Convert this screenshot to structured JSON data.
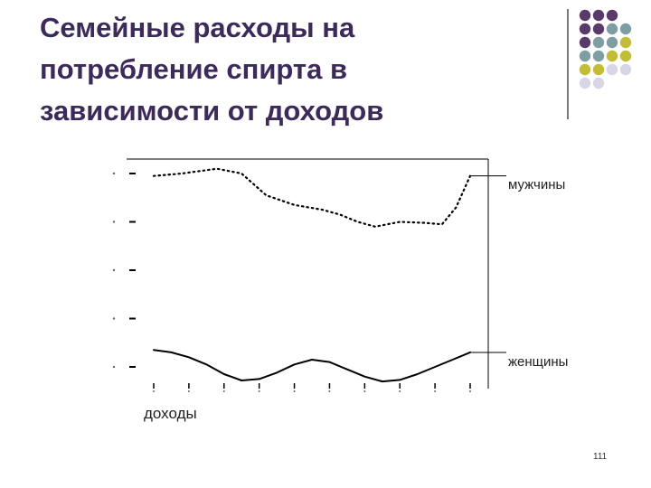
{
  "slide": {
    "title_lines": [
      "Семейные расходы на",
      "потребление спирта в",
      "зависимости от доходов"
    ],
    "page_number": "111"
  },
  "decor": {
    "dot_rows": [
      [
        "#5a3a6a",
        "#5a3a6a",
        "#5a3a6a"
      ],
      [
        "#5a3a6a",
        "#5a3a6a",
        "#7e9ea4",
        "#7e9ea4"
      ],
      [
        "#5a3a6a",
        "#7e9ea4",
        "#7e9ea4",
        "#c2bd35"
      ],
      [
        "#7e9ea4",
        "#7e9ea4",
        "#c2bd35",
        "#c2bd35"
      ],
      [
        "#c2bd35",
        "#c2bd35",
        "#d8d6e6",
        "#d8d6e6"
      ],
      [
        "#d8d6e6",
        "#d8d6e6"
      ]
    ],
    "line_color": "#7a7a7a"
  },
  "chart_data": {
    "type": "line",
    "title": "",
    "xlabel": "доходы",
    "ylabel": "",
    "x": [
      1,
      2,
      3,
      4,
      5,
      6,
      7,
      8,
      9,
      10
    ],
    "xlim": [
      1,
      10
    ],
    "ylim": [
      0,
      5
    ],
    "grid": false,
    "series": [
      {
        "name": "мужчины",
        "style": "dotted",
        "color": "#000000",
        "x": [
          1,
          1.8,
          2.8,
          3.5,
          4.2,
          5,
          5.8,
          6.3,
          6.8,
          7.3,
          8,
          8.7,
          9.2,
          9.6,
          10
        ],
        "values": [
          4.95,
          5.0,
          5.1,
          5.0,
          4.55,
          4.35,
          4.25,
          4.15,
          4.0,
          3.9,
          4.0,
          3.98,
          3.95,
          4.3,
          4.95
        ]
      },
      {
        "name": "женщины",
        "style": "solid",
        "color": "#000000",
        "x": [
          1,
          1.5,
          2,
          2.5,
          3,
          3.5,
          4,
          4.5,
          5,
          5.5,
          6,
          6.5,
          7,
          7.5,
          8,
          8.5,
          9,
          9.5,
          10
        ],
        "values": [
          1.35,
          1.3,
          1.2,
          1.05,
          0.85,
          0.72,
          0.75,
          0.88,
          1.05,
          1.15,
          1.1,
          0.95,
          0.8,
          0.7,
          0.73,
          0.85,
          1.0,
          1.15,
          1.3
        ]
      }
    ]
  }
}
